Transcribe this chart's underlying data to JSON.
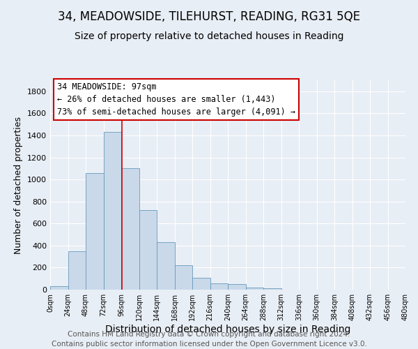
{
  "title": "34, MEADOWSIDE, TILEHURST, READING, RG31 5QE",
  "subtitle": "Size of property relative to detached houses in Reading",
  "xlabel": "Distribution of detached houses by size in Reading",
  "ylabel": "Number of detached properties",
  "bin_edges": [
    0,
    24,
    48,
    72,
    96,
    120,
    144,
    168,
    192,
    216,
    240,
    264,
    288,
    312,
    336,
    360,
    384,
    408,
    432,
    456,
    480
  ],
  "bar_heights": [
    30,
    350,
    1060,
    1430,
    1100,
    720,
    430,
    220,
    105,
    60,
    50,
    20,
    15,
    0,
    0,
    0,
    0,
    0,
    0,
    0
  ],
  "bar_color": "#c9d9ea",
  "bar_edge_color": "#6699bb",
  "ylim": [
    0,
    1900
  ],
  "yticks": [
    0,
    200,
    400,
    600,
    800,
    1000,
    1200,
    1400,
    1600,
    1800
  ],
  "property_size": 97,
  "vline_color": "#cc0000",
  "annotation_title": "34 MEADOWSIDE: 97sqm",
  "annotation_line1": "← 26% of detached houses are smaller (1,443)",
  "annotation_line2": "73% of semi-detached houses are larger (4,091) →",
  "annotation_box_color": "#ffffff",
  "annotation_box_edge": "#cc0000",
  "footer_line1": "Contains HM Land Registry data © Crown copyright and database right 2024.",
  "footer_line2": "Contains public sector information licensed under the Open Government Licence v3.0.",
  "background_color": "#e8eef5",
  "plot_bg_color": "#e8eef5",
  "grid_color": "#ffffff",
  "title_fontsize": 12,
  "subtitle_fontsize": 10,
  "xlabel_fontsize": 10,
  "ylabel_fontsize": 9,
  "footer_fontsize": 7.5
}
